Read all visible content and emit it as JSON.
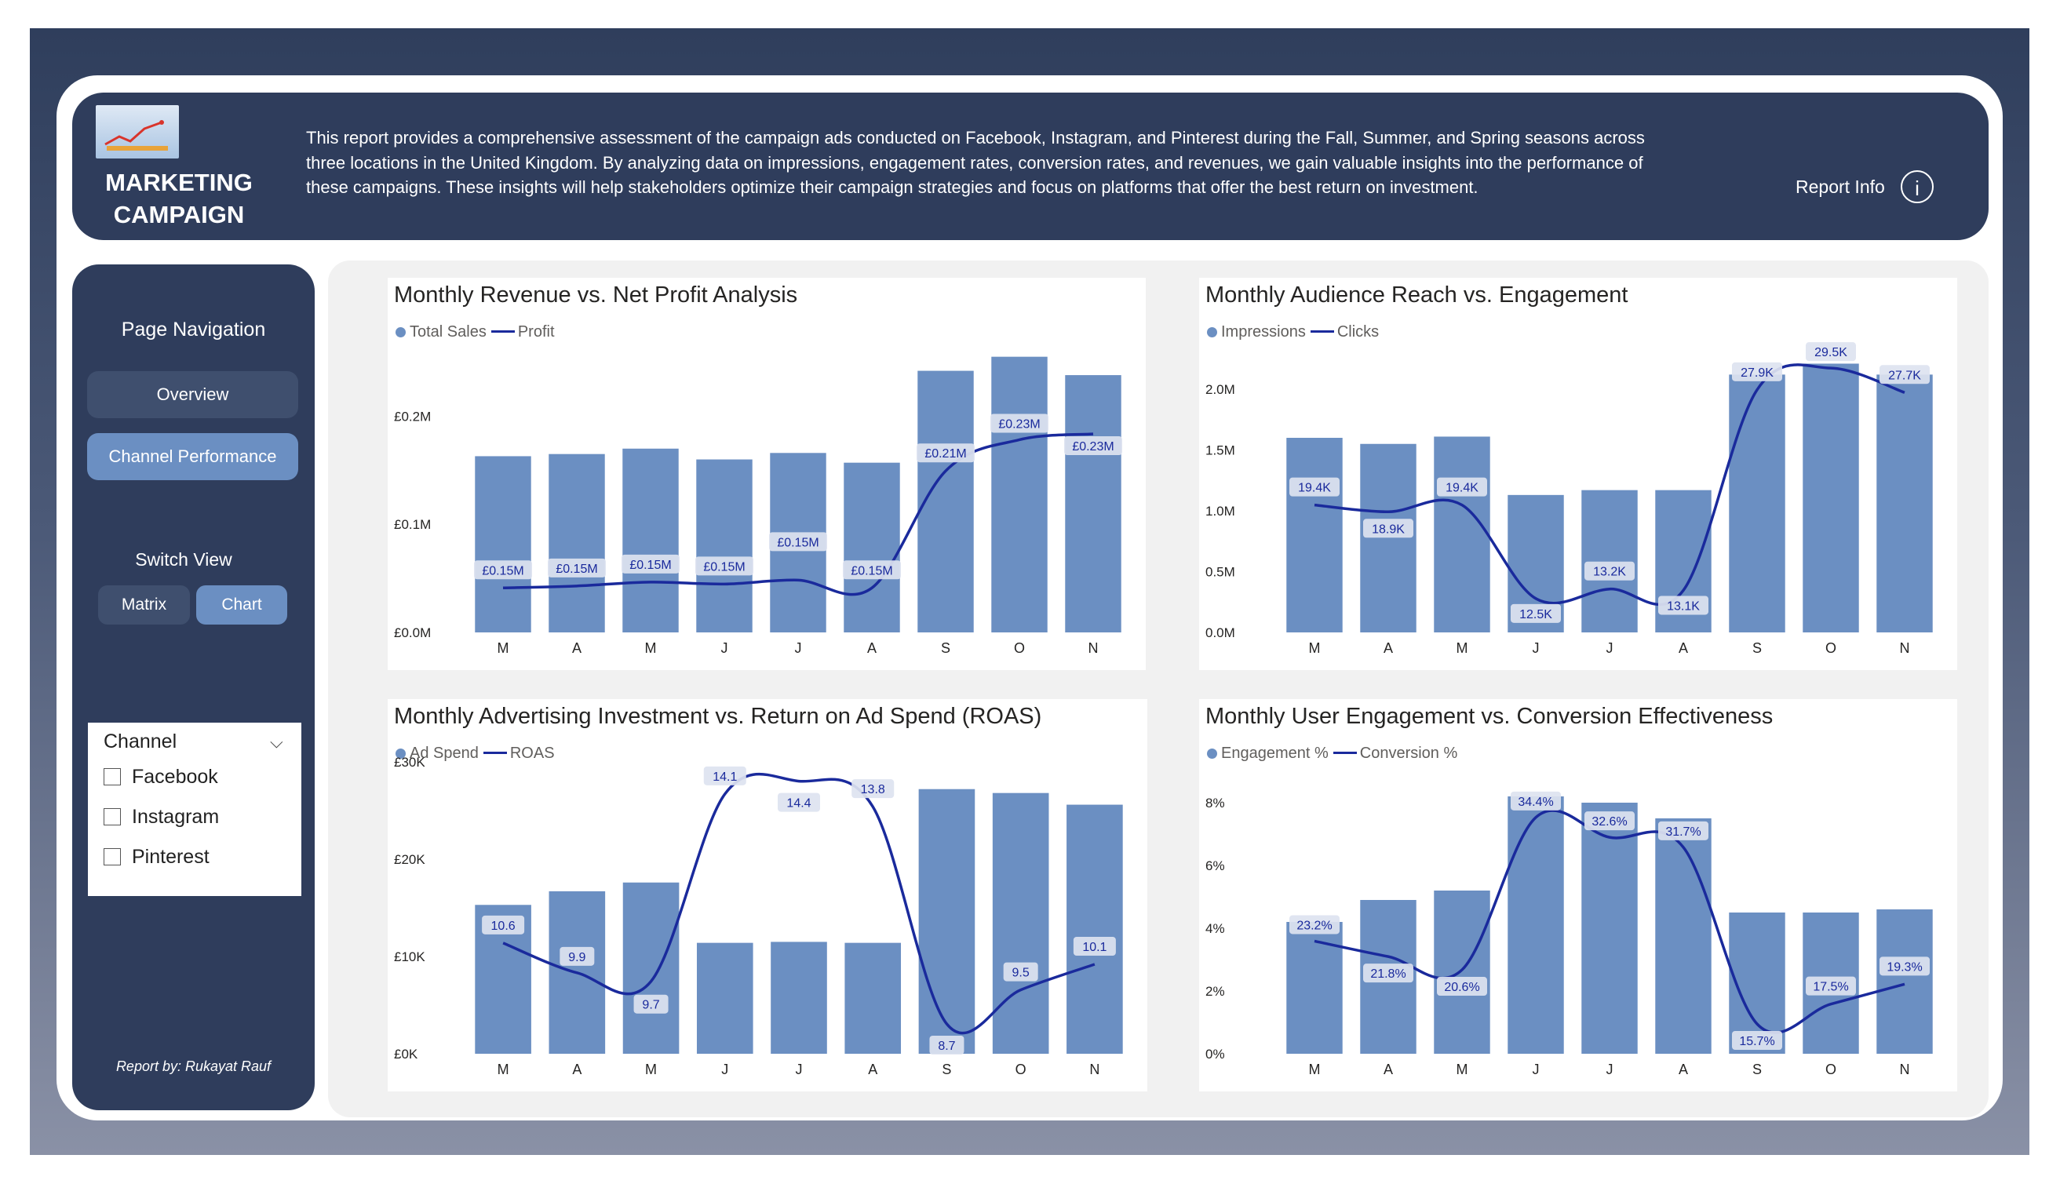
{
  "header": {
    "title_line1": "MARKETING",
    "title_line2": "CAMPAIGN",
    "description": "This report provides a comprehensive assessment of the campaign ads conducted on Facebook, Instagram, and Pinterest during the Fall, Summer, and Spring seasons across three locations in the United Kingdom. By analyzing data on impressions, engagement rates, conversion rates, and revenues, we gain valuable insights into the performance of these campaigns. These insights will help stakeholders optimize their campaign strategies and focus on platforms that offer the best return on investment.",
    "report_info": "Report Info",
    "info_icon": "i"
  },
  "sidebar": {
    "nav_title": "Page Navigation",
    "overview": "Overview",
    "channel_performance": "Channel Performance",
    "switch_title": "Switch View",
    "matrix": "Matrix",
    "chart": "Chart",
    "credit": "Report by: Rukayat Rauf"
  },
  "slicer": {
    "title": "Channel",
    "options": [
      "Facebook",
      "Instagram",
      "Pinterest"
    ]
  },
  "colors": {
    "bar": "#6b8fc2",
    "line": "#1a2a9c",
    "header": "#2f3d5c",
    "button_active": "#6b8fc2",
    "button_inactive": "#3f4f6e"
  },
  "chart_data": [
    {
      "type": "bar",
      "title": "Monthly Revenue vs. Net Profit Analysis",
      "categories": [
        "M",
        "A",
        "M",
        "J",
        "J",
        "A",
        "S",
        "O",
        "N"
      ],
      "series": [
        {
          "name": "Total Sales",
          "kind": "bar",
          "values": [
            163000,
            165000,
            170000,
            160000,
            166000,
            157000,
            242000,
            255000,
            238000
          ]
        },
        {
          "name": "Profit",
          "kind": "line",
          "values": [
            150000,
            151000,
            153000,
            152000,
            154000,
            150000,
            210000,
            226000,
            229000
          ]
        }
      ],
      "line_labels": [
        "£0.15M",
        "£0.15M",
        "£0.15M",
        "£0.15M",
        "£0.15M",
        "£0.15M",
        "£0.21M",
        "£0.23M",
        "£0.23M"
      ],
      "y_ticks": [
        "£0.0M",
        "£0.1M",
        "£0.2M"
      ],
      "ylim": [
        0,
        270000
      ],
      "legend_position": "top-left"
    },
    {
      "type": "bar",
      "title": "Monthly Audience Reach vs. Engagement",
      "categories": [
        "M",
        "A",
        "M",
        "J",
        "J",
        "A",
        "S",
        "O",
        "N"
      ],
      "series": [
        {
          "name": "Impressions",
          "kind": "bar",
          "values": [
            1600000,
            1550000,
            1610000,
            1130000,
            1170000,
            1170000,
            2120000,
            2210000,
            2120000
          ]
        },
        {
          "name": "Clicks",
          "kind": "line",
          "values": [
            19400,
            18900,
            19400,
            12500,
            13200,
            13100,
            27900,
            29500,
            27700
          ]
        }
      ],
      "line_labels": [
        "19.4K",
        "18.9K",
        "19.4K",
        "12.5K",
        "13.2K",
        "13.1K",
        "27.9K",
        "29.5K",
        "27.7K"
      ],
      "y_ticks": [
        "0.0M",
        "0.5M",
        "1.0M",
        "1.5M",
        "2.0M"
      ],
      "ylim": [
        0,
        2400000
      ],
      "legend_position": "top-left"
    },
    {
      "type": "bar",
      "title": "Monthly Advertising Investment vs. Return on Ad Spend (ROAS)",
      "categories": [
        "M",
        "A",
        "M",
        "J",
        "J",
        "A",
        "S",
        "O",
        "N"
      ],
      "series": [
        {
          "name": "Ad Spend",
          "kind": "bar",
          "values": [
            15300,
            16700,
            17600,
            11400,
            11500,
            11400,
            27200,
            26800,
            25600
          ]
        },
        {
          "name": "ROAS",
          "kind": "line",
          "values": [
            10.6,
            9.9,
            9.7,
            14.1,
            14.4,
            13.8,
            8.7,
            9.5,
            10.1
          ]
        }
      ],
      "line_labels": [
        "10.6",
        "9.9",
        "9.7",
        "14.1",
        "14.4",
        "13.8",
        "8.7",
        "9.5",
        "10.1"
      ],
      "y_ticks": [
        "£0K",
        "£10K",
        "£20K",
        "£30K"
      ],
      "ylim": [
        0,
        30000
      ],
      "legend_position": "top-left"
    },
    {
      "type": "bar",
      "title": "Monthly User Engagement vs. Conversion Effectiveness",
      "categories": [
        "M",
        "A",
        "M",
        "J",
        "J",
        "A",
        "S",
        "O",
        "N"
      ],
      "series": [
        {
          "name": "Engagement %",
          "kind": "bar",
          "values": [
            4.2,
            4.9,
            5.2,
            8.2,
            8.0,
            7.5,
            4.5,
            4.5,
            4.6
          ]
        },
        {
          "name": "Conversion %",
          "kind": "line",
          "values": [
            23.2,
            21.8,
            20.6,
            34.4,
            32.6,
            31.7,
            15.7,
            17.5,
            19.3
          ]
        }
      ],
      "line_labels": [
        "23.2%",
        "21.8%",
        "20.6%",
        "34.4%",
        "32.6%",
        "31.7%",
        "15.7%",
        "17.5%",
        "19.3%"
      ],
      "y_ticks": [
        "0%",
        "2%",
        "4%",
        "6%",
        "8%"
      ],
      "ylim": [
        0,
        9.3
      ],
      "legend_position": "top-left"
    }
  ]
}
